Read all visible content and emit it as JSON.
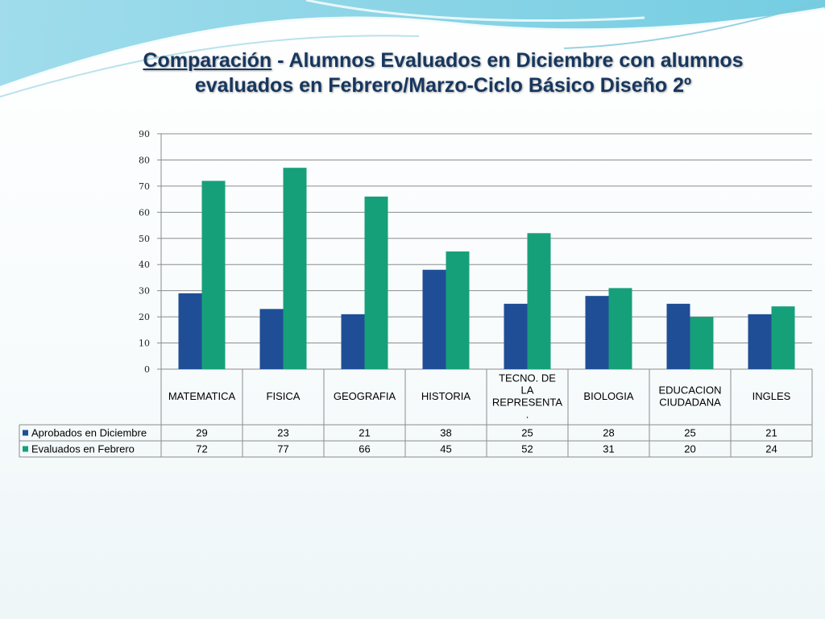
{
  "slide": {
    "title_part1": "Comparación",
    "title_part2": " - Alumnos Evaluados en Diciembre con alumnos evaluados en Febrero/Marzo-Ciclo Básico Diseño 2º"
  },
  "chart_data": {
    "type": "bar",
    "title": "Comparación  - Alumnos Evaluados en Diciembre con alumnos evaluados en Febrero/Marzo-Ciclo Básico Diseño 2º",
    "categories": [
      "MATEMATICA",
      "FISICA",
      "GEOGRAFIA",
      "HISTORIA",
      "TECNO. DE LA REPRESENTA.",
      "BIOLOGIA",
      "EDUCACION CIUDADANA",
      "INGLES"
    ],
    "category_lines": [
      [
        "MATEMATICA"
      ],
      [
        "FISICA"
      ],
      [
        "GEOGRAFIA"
      ],
      [
        "HISTORIA"
      ],
      [
        "TECNO. DE",
        "LA",
        "REPRESENTA",
        "."
      ],
      [
        "BIOLOGIA"
      ],
      [
        "EDUCACION",
        "CIUDADANA"
      ],
      [
        "INGLES"
      ]
    ],
    "series": [
      {
        "name": "Aprobados en Diciembre",
        "color": "#1f4e96",
        "values": [
          29,
          23,
          21,
          38,
          25,
          28,
          25,
          21
        ]
      },
      {
        "name": "Evaluados en Febrero",
        "color": "#16a07a",
        "values": [
          72,
          77,
          66,
          45,
          52,
          31,
          20,
          24
        ]
      }
    ],
    "ylim": [
      0,
      90
    ],
    "yticks": [
      0,
      10,
      20,
      30,
      40,
      50,
      60,
      70,
      80,
      90
    ],
    "grid": true,
    "legend": "data-table"
  }
}
